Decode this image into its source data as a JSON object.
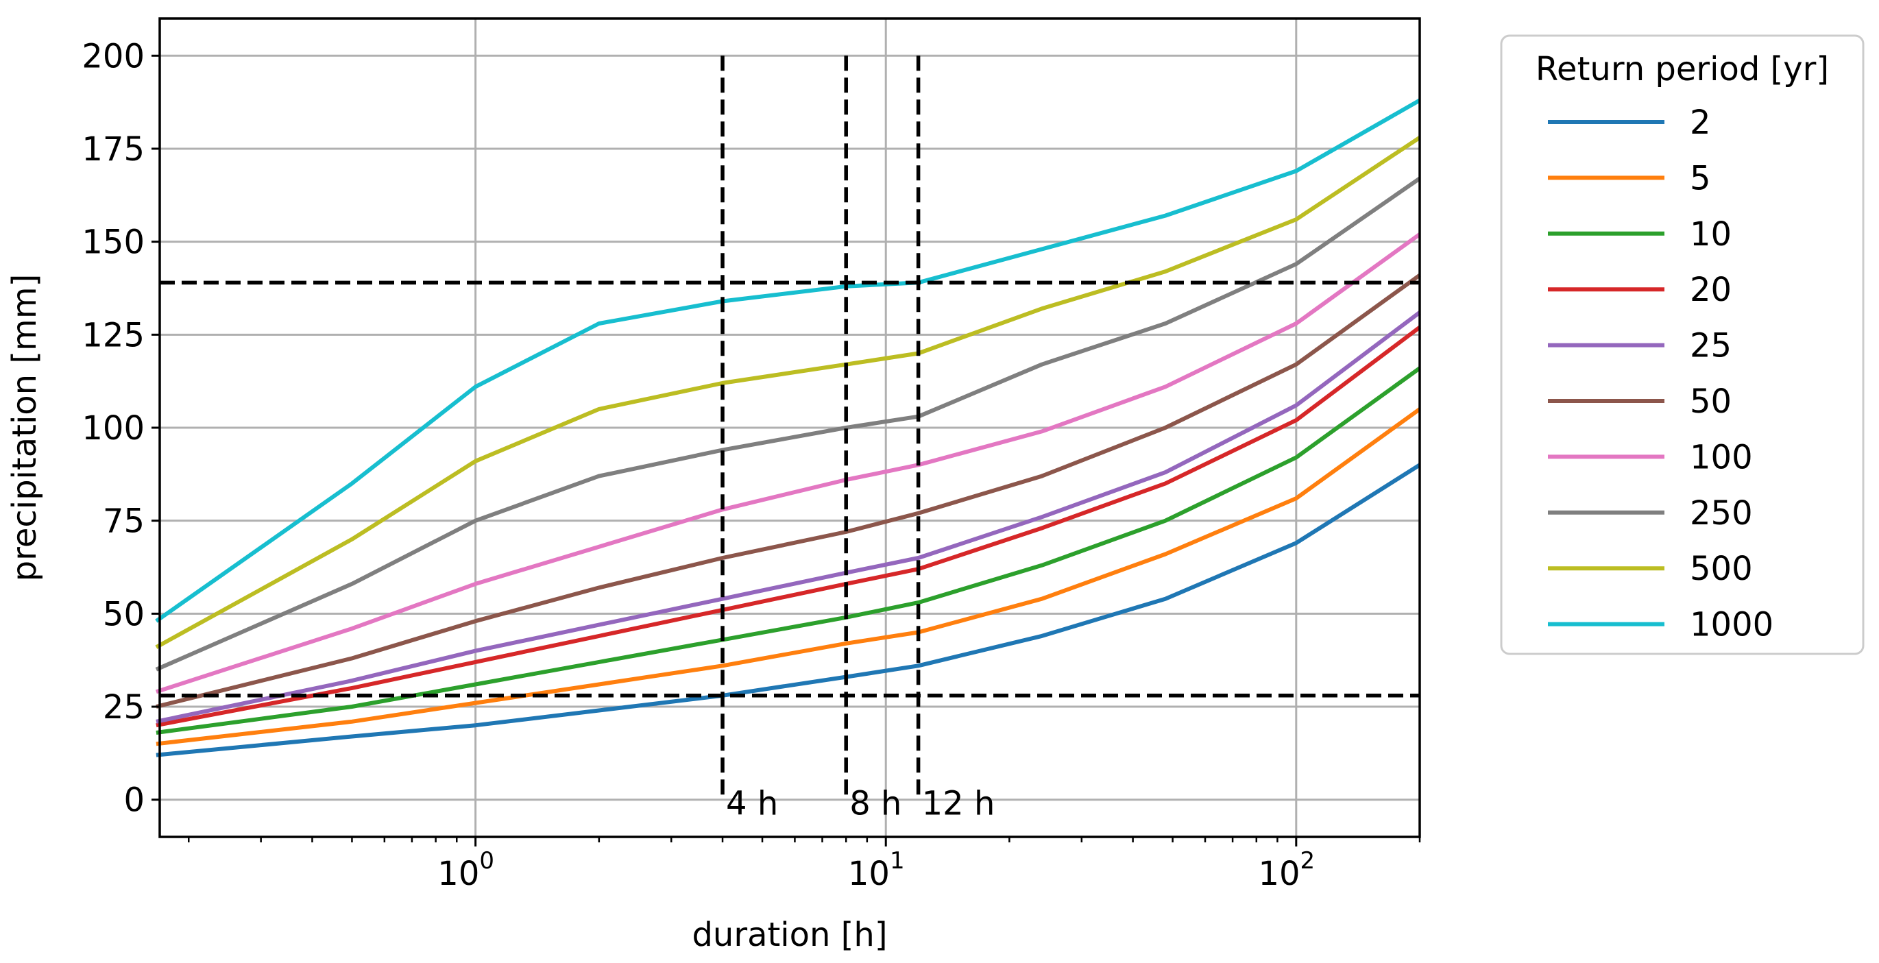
{
  "chart_data": {
    "type": "line",
    "xscale": "log",
    "xlabel": "duration [h]",
    "ylabel": "precipitation [mm]",
    "xlim": [
      0.17,
      200
    ],
    "ylim": [
      -10,
      210
    ],
    "grid": true,
    "x": [
      0.1667,
      0.5,
      1,
      2,
      4,
      8,
      12,
      24,
      48,
      100,
      200
    ],
    "x_ticks": [
      {
        "value": 1,
        "base": "10",
        "exp": "0"
      },
      {
        "value": 10,
        "base": "10",
        "exp": "1"
      },
      {
        "value": 100,
        "base": "10",
        "exp": "2"
      }
    ],
    "y_ticks": [
      0,
      25,
      50,
      75,
      100,
      125,
      150,
      175,
      200
    ],
    "legend": {
      "title": "Return period [yr]",
      "placement": "outside-right"
    },
    "series": [
      {
        "name": "2",
        "color": "#1f77b4",
        "values": [
          12,
          17,
          20,
          24,
          28,
          33,
          36,
          44,
          54,
          69,
          90
        ]
      },
      {
        "name": "5",
        "color": "#ff7f0e",
        "values": [
          15,
          21,
          26,
          31,
          36,
          42,
          45,
          54,
          66,
          81,
          105
        ]
      },
      {
        "name": "10",
        "color": "#2ca02c",
        "values": [
          18,
          25,
          31,
          37,
          43,
          49,
          53,
          63,
          75,
          92,
          116
        ]
      },
      {
        "name": "20",
        "color": "#d62728",
        "values": [
          20,
          30,
          37,
          44,
          51,
          58,
          62,
          73,
          85,
          102,
          127
        ]
      },
      {
        "name": "25",
        "color": "#9467bd",
        "values": [
          21,
          32,
          40,
          47,
          54,
          61,
          65,
          76,
          88,
          106,
          131
        ]
      },
      {
        "name": "50",
        "color": "#8c564b",
        "values": [
          25,
          38,
          48,
          57,
          65,
          72,
          77,
          87,
          100,
          117,
          141
        ]
      },
      {
        "name": "100",
        "color": "#e377c2",
        "values": [
          29,
          46,
          58,
          68,
          78,
          86,
          90,
          99,
          111,
          128,
          152
        ]
      },
      {
        "name": "250",
        "color": "#7f7f7f",
        "values": [
          35,
          58,
          75,
          87,
          94,
          100,
          103,
          117,
          128,
          144,
          167
        ]
      },
      {
        "name": "500",
        "color": "#bcbd22",
        "values": [
          41,
          70,
          91,
          105,
          112,
          117,
          120,
          132,
          142,
          156,
          178
        ]
      },
      {
        "name": "1000",
        "color": "#17becf",
        "values": [
          48,
          85,
          111,
          128,
          134,
          138,
          139,
          148,
          157,
          169,
          188
        ]
      }
    ],
    "reference_lines": {
      "horizontal": [
        28,
        139
      ],
      "vertical": [
        {
          "x": 4,
          "label": "4 h"
        },
        {
          "x": 8,
          "label": "8 h"
        },
        {
          "x": 12,
          "label": "12 h"
        }
      ],
      "vertical_top": 200,
      "color": "#000000"
    }
  }
}
